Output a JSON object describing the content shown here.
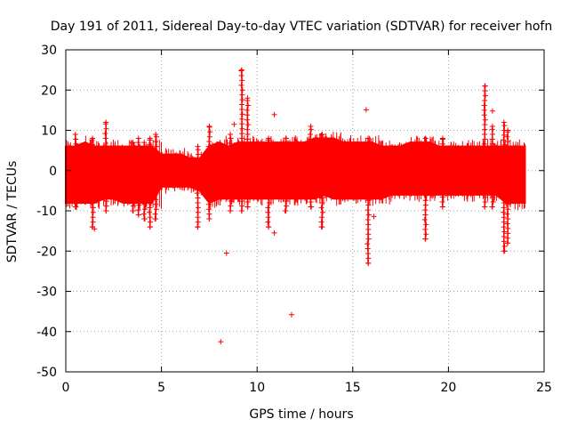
{
  "chart_data": {
    "type": "scatter",
    "title": "Day 191 of 2011, Sidereal Day-to-day VTEC variation (SDTVAR) for receiver hofn",
    "xlabel": "GPS time / hours",
    "ylabel": "SDTVAR / TECUs",
    "xlim": [
      0,
      25
    ],
    "ylim": [
      -50,
      30
    ],
    "x_ticks": [
      0,
      5,
      10,
      15,
      20,
      25
    ],
    "y_ticks": [
      30,
      20,
      10,
      0,
      -10,
      -20,
      -30,
      -40,
      -50
    ],
    "grid": true,
    "marker": "+",
    "color": "#ff0000",
    "series": [
      {
        "name": "SDTVAR",
        "band_envelope": {
          "x": [
            0,
            0.5,
            1,
            1.5,
            2,
            2.5,
            3,
            3.5,
            4,
            4.5,
            5,
            5.5,
            6,
            6.5,
            7,
            7.5,
            8,
            8.5,
            9,
            9.5,
            10,
            10.5,
            11,
            11.5,
            12,
            12.5,
            13,
            13.5,
            14,
            14.5,
            15,
            15.5,
            16,
            16.5,
            17,
            17.5,
            18,
            18.5,
            19,
            19.5,
            20,
            20.5,
            21,
            21.5,
            22,
            22.5,
            23,
            23.5,
            24
          ],
          "upper": [
            6,
            6,
            7,
            6,
            6,
            6,
            6,
            6,
            6,
            6,
            4,
            4,
            4,
            3,
            3,
            6,
            7,
            6,
            7,
            7,
            7,
            7,
            7,
            7,
            7,
            7,
            8,
            8,
            8,
            7,
            7,
            7,
            7,
            6,
            6,
            6,
            7,
            7,
            7,
            6,
            6,
            6,
            6,
            6,
            6,
            6,
            6,
            6,
            6
          ],
          "lower": [
            -8,
            -8,
            -8,
            -8,
            -7,
            -7,
            -8,
            -8,
            -8,
            -8,
            -4,
            -4,
            -4,
            -4,
            -5,
            -8,
            -7,
            -7,
            -7,
            -7,
            -7,
            -7,
            -7,
            -7,
            -7,
            -7,
            -7,
            -6,
            -7,
            -7,
            -7,
            -7,
            -7,
            -7,
            -6,
            -6,
            -6,
            -6,
            -6,
            -6,
            -6,
            -6,
            -6,
            -6,
            -6,
            -6,
            -8,
            -8,
            -8
          ]
        },
        "excursions": [
          {
            "x": 0.5,
            "min": -9,
            "max": 9
          },
          {
            "x": 1.4,
            "min": -14,
            "max": 8
          },
          {
            "x": 2.1,
            "min": -10,
            "max": 12
          },
          {
            "x": 3.5,
            "min": -10,
            "max": 7
          },
          {
            "x": 3.8,
            "min": -11,
            "max": 8
          },
          {
            "x": 4.1,
            "min": -12,
            "max": 7
          },
          {
            "x": 4.4,
            "min": -14,
            "max": 8
          },
          {
            "x": 4.7,
            "min": -12,
            "max": 9
          },
          {
            "x": 6.9,
            "min": -14,
            "max": 6
          },
          {
            "x": 7.5,
            "min": -12,
            "max": 11
          },
          {
            "x": 8.6,
            "min": -10,
            "max": 9
          },
          {
            "x": 9.2,
            "min": -10,
            "max": 25
          },
          {
            "x": 9.5,
            "min": -9,
            "max": 18
          },
          {
            "x": 10.6,
            "min": -14,
            "max": 8
          },
          {
            "x": 11.5,
            "min": -10,
            "max": 8
          },
          {
            "x": 12.8,
            "min": -9,
            "max": 11
          },
          {
            "x": 13.4,
            "min": -14,
            "max": 9
          },
          {
            "x": 15.8,
            "min": -23,
            "max": 8
          },
          {
            "x": 18.8,
            "min": -17,
            "max": 8
          },
          {
            "x": 19.7,
            "min": -9,
            "max": 8
          },
          {
            "x": 21.9,
            "min": -9,
            "max": 21
          },
          {
            "x": 22.3,
            "min": -9,
            "max": 11
          },
          {
            "x": 22.9,
            "min": -20,
            "max": 12
          },
          {
            "x": 23.1,
            "min": -18,
            "max": 10
          }
        ],
        "outliers": [
          {
            "x": 8.1,
            "y": -42.5
          },
          {
            "x": 8.4,
            "y": -20.5
          },
          {
            "x": 11.8,
            "y": -35.8
          },
          {
            "x": 10.9,
            "y": 13.9
          },
          {
            "x": 15.7,
            "y": 15.1
          },
          {
            "x": 8.8,
            "y": 11.5
          },
          {
            "x": 10.9,
            "y": -15.5
          },
          {
            "x": 16.1,
            "y": -11.4
          },
          {
            "x": 1.5,
            "y": -14.5
          },
          {
            "x": 22.3,
            "y": 14.8
          }
        ]
      }
    ]
  }
}
